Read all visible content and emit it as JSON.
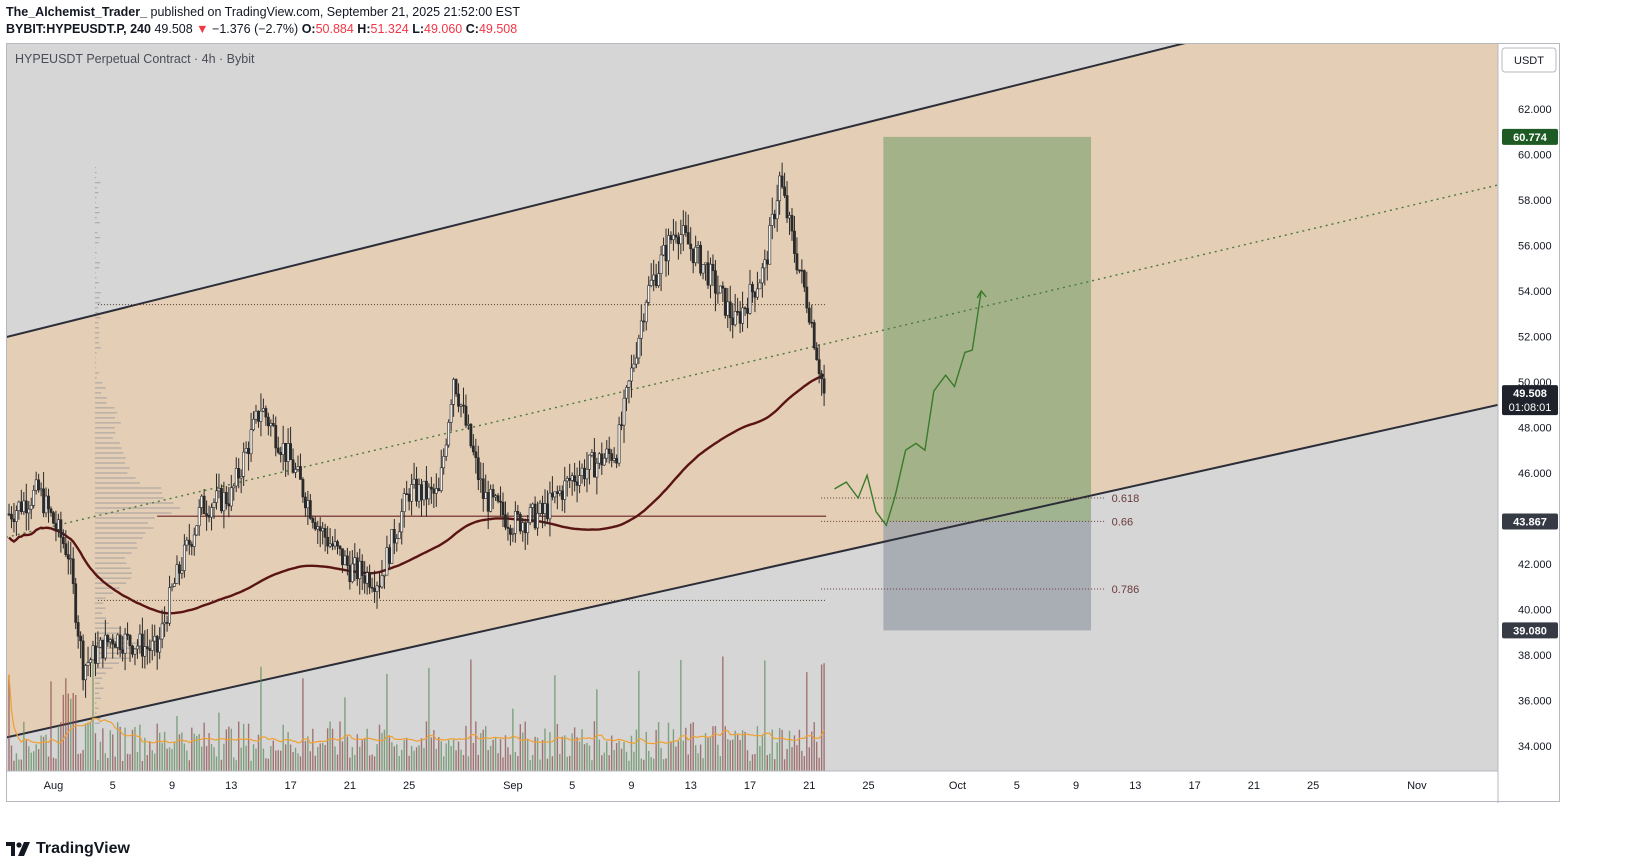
{
  "header": {
    "author": "The_Alchemist_Trader_",
    "published": "published on TradingView.com, September 21, 2025 21:52:00 EST",
    "symbol": "BYBIT:HYPEUSDT.P, 240",
    "last": "49.508",
    "change": "−1.376 (−2.7%)",
    "open_label": "O:",
    "open": "50.884",
    "high_label": "H:",
    "high": "51.324",
    "low_label": "L:",
    "low": "49.060",
    "close_label": "C:",
    "close": "49.508"
  },
  "chart_data": {
    "type": "candlestick",
    "title": "HYPEUSDT Perpetual Contract · 4h · Bybit",
    "currency": "USDT",
    "y_ticks": [
      "62.000",
      "60.000",
      "58.000",
      "56.000",
      "54.000",
      "52.000",
      "50.000",
      "48.000",
      "46.000",
      "44.000",
      "42.000",
      "40.000",
      "38.000",
      "36.000",
      "34.000"
    ],
    "ylim": [
      32.9,
      64.9
    ],
    "x_ticks": [
      "Aug",
      "5",
      "9",
      "13",
      "17",
      "21",
      "25",
      "Sep",
      "5",
      "9",
      "13",
      "17",
      "21",
      "25",
      "Oct",
      "5",
      "9",
      "13",
      "17",
      "21",
      "25",
      "Nov"
    ],
    "price_keypoints": [
      {
        "date": "Jul 29",
        "price": 44.2
      },
      {
        "date": "Jul 31",
        "price": 45.2
      },
      {
        "date": "Aug 2",
        "price": 42.5
      },
      {
        "date": "Aug 3",
        "price": 37.5
      },
      {
        "date": "Aug 5",
        "price": 38.8
      },
      {
        "date": "Aug 8",
        "price": 38.2
      },
      {
        "date": "Aug 9",
        "price": 40.8
      },
      {
        "date": "Aug 11",
        "price": 44.5
      },
      {
        "date": "Aug 13",
        "price": 45.0
      },
      {
        "date": "Aug 15",
        "price": 48.9
      },
      {
        "date": "Aug 17",
        "price": 46.5
      },
      {
        "date": "Aug 19",
        "price": 43.5
      },
      {
        "date": "Aug 21",
        "price": 41.8
      },
      {
        "date": "Aug 23",
        "price": 41.3
      },
      {
        "date": "Aug 25",
        "price": 45.2
      },
      {
        "date": "Aug 27",
        "price": 45.0
      },
      {
        "date": "Aug 28",
        "price": 50.3
      },
      {
        "date": "Aug 30",
        "price": 45.0
      },
      {
        "date": "Sep 1",
        "price": 43.8
      },
      {
        "date": "Sep 3",
        "price": 44.2
      },
      {
        "date": "Sep 5",
        "price": 45.8
      },
      {
        "date": "Sep 8",
        "price": 47.0
      },
      {
        "date": "Sep 10",
        "price": 53.8
      },
      {
        "date": "Sep 12",
        "price": 56.8
      },
      {
        "date": "Sep 14",
        "price": 55.0
      },
      {
        "date": "Sep 16",
        "price": 52.6
      },
      {
        "date": "Sep 18",
        "price": 55.0
      },
      {
        "date": "Sep 19",
        "price": 58.9
      },
      {
        "date": "Sep 20",
        "price": 55.8
      },
      {
        "date": "Sep 21",
        "price": 53.2
      },
      {
        "date": "Sep 22",
        "price": 49.508
      }
    ],
    "volume": {
      "ma_label": "Volume MA"
    },
    "annotations": {
      "last_price": "49.508",
      "countdown": "01:08:01",
      "target": "60.774",
      "entry": "43.867",
      "stop": "39.080",
      "fib_levels": [
        {
          "label": "0.618",
          "price": 44.9
        },
        {
          "label": "0.66",
          "price": 43.87
        },
        {
          "label": "0.786",
          "price": 40.9
        }
      ],
      "moving_average_last": 44.1,
      "horizontal_level": 44.1,
      "channel": {
        "upper": [
          {
            "date": "Jul 29",
            "price": 52.0
          },
          {
            "date": "Oct 25",
            "price": 66.3
          }
        ],
        "lower": [
          {
            "date": "Jul 29",
            "price": 34.4
          },
          {
            "date": "Nov 1",
            "price": 48.2
          }
        ]
      },
      "projection_path_end_price": 54.0,
      "colors": {
        "channel_fill": "#e6cdb0",
        "target_zone": "#8fa87a",
        "stop_zone": "#9aa0aa",
        "ma": "#5a1414",
        "bull": "#2a2a2a",
        "bear": "#3a3a3a",
        "projection": "#3a7a2a",
        "target_label_bg": "#1e5a23",
        "label_bg": "#363a45"
      }
    }
  },
  "footer": {
    "brand": "TradingView"
  }
}
